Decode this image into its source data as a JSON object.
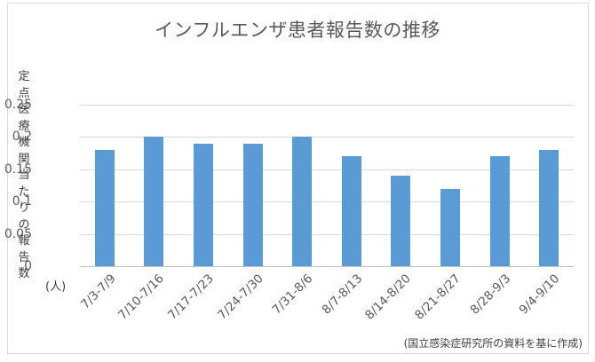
{
  "chart_data": {
    "type": "bar",
    "title": "インフルエンザ患者報告数の推移",
    "xlabel": "",
    "ylabel": "定点医療機関当たりの報告数",
    "y_unit": "(人)",
    "ylim": [
      0,
      0.25
    ],
    "yticks": [
      "0",
      "0.05",
      "0.1",
      "0.15",
      "0.2",
      "0.25"
    ],
    "grid": true,
    "legend": null,
    "categories": [
      "7/3-7/9",
      "7/10-7/16",
      "7/17-7/23",
      "7/24-7/30",
      "7/31-8/6",
      "8/7-8/13",
      "8/14-8/20",
      "8/21-8/27",
      "8/28-9/3",
      "9/4-9/10"
    ],
    "values": [
      0.18,
      0.2,
      0.19,
      0.19,
      0.2,
      0.17,
      0.14,
      0.12,
      0.17,
      0.18
    ],
    "bar_color": "#5b9bd5",
    "source_note": "(国立感染症研究所の資料を基に作成)"
  }
}
